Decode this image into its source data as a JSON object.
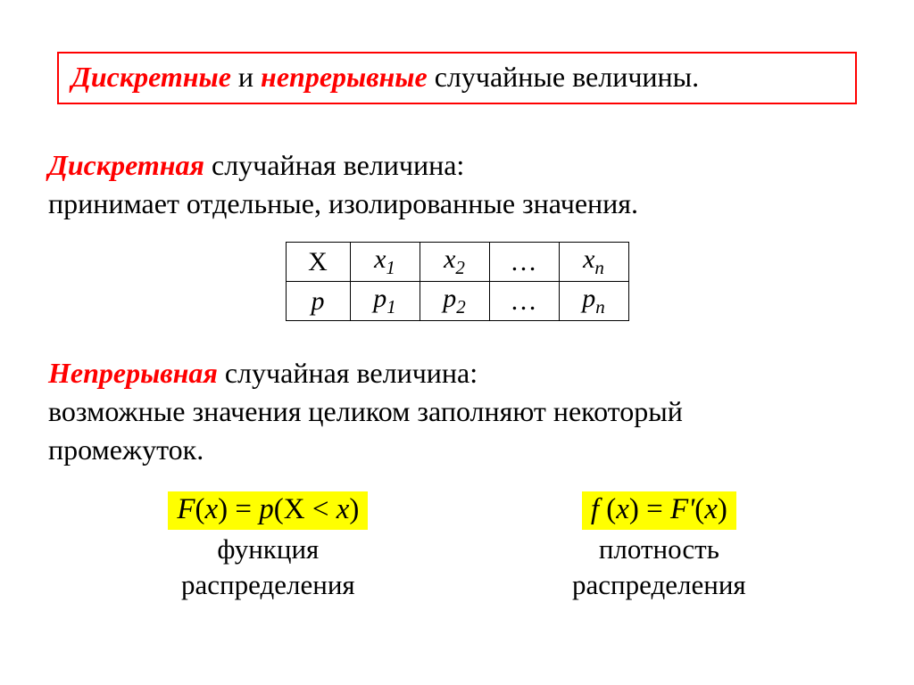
{
  "title": {
    "part1": "Дискретные",
    "part2": " и ",
    "part3": "непрерывные",
    "part4": " случайные величины."
  },
  "discrete": {
    "lead": "Дискретная",
    "rest1": " случайная величина:",
    "line2": "принимает отдельные, изолированные значения."
  },
  "table": {
    "row1": {
      "h": "Х",
      "c1": "x",
      "s1": "1",
      "c2": "x",
      "s2": "2",
      "c3": "…",
      "c4": "x",
      "s4": "n"
    },
    "row2": {
      "h": "p",
      "c1": "p",
      "s1": "1",
      "c2": "p",
      "s2": "2",
      "c3": "…",
      "c4": "p",
      "s4": "n"
    }
  },
  "continuous": {
    "lead": "Непрерывная",
    "rest1": " случайная величина:",
    "line2": "возможные значения целиком заполняют некоторый",
    "line3": "промежуток."
  },
  "formula_left": {
    "expr_lhs_F": "F",
    "expr_lhs_open": "(",
    "expr_lhs_x": "x",
    "expr_lhs_close": ")",
    "eq": " = ",
    "expr_rhs": "p",
    "expr_rhs_open": "(",
    "expr_rhs_X": "X",
    "expr_lt": " < ",
    "expr_rhs_x2": "x",
    "expr_rhs_close": ")",
    "label1": "функция",
    "label2": "распределения"
  },
  "formula_right": {
    "expr_lhs_f": "f ",
    "expr_lhs_open": "(",
    "expr_lhs_x": "x",
    "expr_lhs_close": ")",
    "eq": " = ",
    "expr_rhs_F": "F'",
    "expr_rhs_open": "(",
    "expr_rhs_x": "x",
    "expr_rhs_close": ")",
    "label1": "плотность",
    "label2": "распределения"
  },
  "colors": {
    "accent": "#ff0000",
    "highlight": "#ffff00",
    "text": "#000000",
    "background": "#ffffff",
    "border": "#000000"
  }
}
